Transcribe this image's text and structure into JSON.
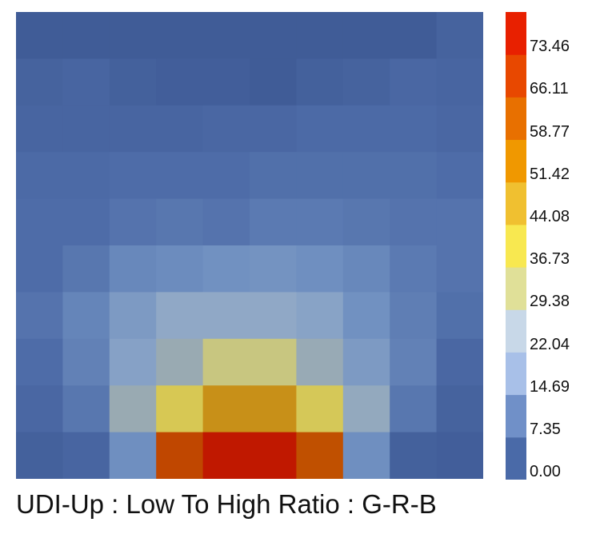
{
  "chart_data": {
    "type": "heatmap",
    "title": "UDI-Up : Low To High Ratio : G-R-B",
    "xlabel": "",
    "ylabel": "",
    "rows": 10,
    "cols": 10,
    "values": [
      [
        1.5,
        1.5,
        1.5,
        1.5,
        1.5,
        1.5,
        1.5,
        1.5,
        1.5,
        3.0
      ],
      [
        3.0,
        3.5,
        2.5,
        2.0,
        2.0,
        1.5,
        2.5,
        3.0,
        4.0,
        3.5
      ],
      [
        3.5,
        3.5,
        3.5,
        3.5,
        4.0,
        4.0,
        4.5,
        4.5,
        4.5,
        4.0
      ],
      [
        4.5,
        4.5,
        5.0,
        5.0,
        5.0,
        5.5,
        5.5,
        5.5,
        5.5,
        5.0
      ],
      [
        5.0,
        5.0,
        6.0,
        6.5,
        6.0,
        7.0,
        7.0,
        6.5,
        6.0,
        6.0
      ],
      [
        5.0,
        6.5,
        9.0,
        9.5,
        10.5,
        11.0,
        10.0,
        9.0,
        7.0,
        6.0
      ],
      [
        6.0,
        8.5,
        13.0,
        17.5,
        17.5,
        17.5,
        15.5,
        10.5,
        7.5,
        5.5
      ],
      [
        5.0,
        8.0,
        15.0,
        21.5,
        31.0,
        31.0,
        21.0,
        13.0,
        8.0,
        4.0
      ],
      [
        4.0,
        6.5,
        21.5,
        36.5,
        52.0,
        52.0,
        36.0,
        19.0,
        6.5,
        3.0
      ],
      [
        2.5,
        3.5,
        10.0,
        66.0,
        79.0,
        77.0,
        64.0,
        10.0,
        2.5,
        2.0
      ]
    ],
    "colorbar": {
      "ticks": [
        "73.46",
        "66.11",
        "58.77",
        "51.42",
        "44.08",
        "36.73",
        "29.38",
        "22.04",
        "14.69",
        "7.35",
        "0.00"
      ],
      "bins": [
        0,
        7.35,
        14.69,
        22.04,
        29.38,
        36.73,
        44.08,
        51.42,
        58.77,
        66.11,
        73.46,
        80.8
      ],
      "colors": [
        "#4a6aa8",
        "#7090c8",
        "#a8c0e8",
        "#c8d8e8",
        "#e0e098",
        "#f8e850",
        "#f0c030",
        "#f09800",
        "#e87000",
        "#e84800",
        "#e82000"
      ]
    },
    "legend": "right",
    "grid": false
  }
}
